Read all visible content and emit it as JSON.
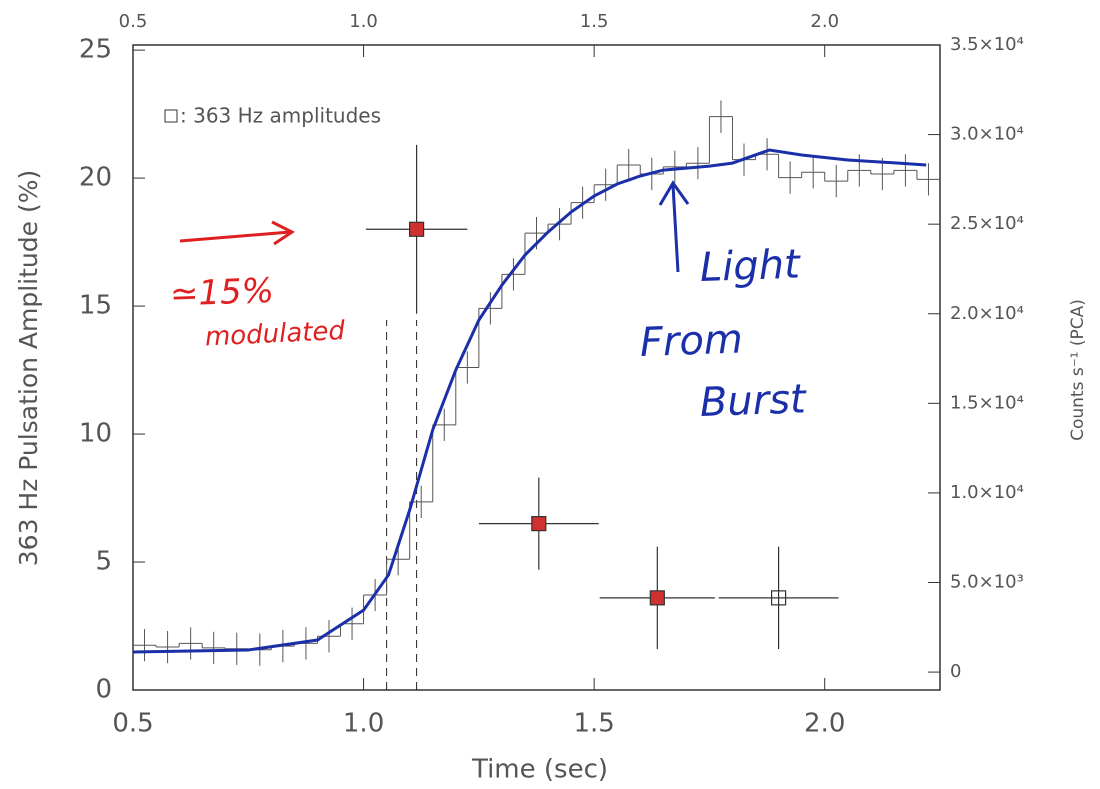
{
  "chart_data": {
    "type": "scatter",
    "xlabel": "Time (sec)",
    "ylabel": "363 Hz Pulsation Amplitude (%)",
    "y2label": "Counts s⁻¹ (PCA)",
    "xlim": [
      0.5,
      2.25
    ],
    "xticks": [
      0.5,
      {
        "value": 1,
        "label": "1.0"
      },
      1.5,
      {
        "value": 2,
        "label": "2.0"
      }
    ],
    "ylim": [
      0,
      25.2
    ],
    "yticks": [
      0,
      5,
      10,
      15,
      20,
      25
    ],
    "y2lim": [
      -1000,
      35000
    ],
    "y2ticks": [
      0,
      {
        "value": 5000,
        "label": "5.0×10³"
      },
      {
        "value": 10000,
        "label": "1.0×10⁴"
      },
      {
        "value": 15000,
        "label": "1.5×10⁴"
      },
      {
        "value": 20000,
        "label": "2.0×10⁴"
      },
      {
        "value": 25000,
        "label": "2.5×10⁴"
      },
      {
        "value": 30000,
        "label": "3.0×10⁴"
      },
      {
        "value": 35000,
        "label": "3.5×10⁴"
      }
    ],
    "series": [
      {
        "name": ": 363 Hz amplitudes",
        "kind": "errorbar",
        "color": "#333333",
        "point_fills": [
          "#d03030",
          "#d03030",
          "#d03030",
          "none"
        ],
        "x": [
          1.115,
          1.38,
          1.637,
          1.9
        ],
        "values": [
          18,
          6.5,
          3.6,
          3.6
        ],
        "xerr": [
          0.11,
          0.13,
          0.125,
          0.13
        ],
        "yerr": [
          3.3,
          1.8,
          2,
          2
        ]
      },
      {
        "kind": "histogram",
        "axis": "y2",
        "color": "#555555",
        "bins": [
          0.5,
          0.55,
          0.6,
          0.65,
          0.7,
          0.75,
          0.8,
          0.85,
          0.9,
          0.95,
          1.0,
          1.05,
          1.1,
          1.15,
          1.2,
          1.25,
          1.3,
          1.35,
          1.4,
          1.45,
          1.5,
          1.55,
          1.6,
          1.65,
          1.7,
          1.75,
          1.8,
          1.85,
          1.9,
          1.95,
          2.0,
          2.05,
          2.1,
          2.15,
          2.2,
          2.25
        ],
        "values": [
          1500,
          1400,
          1600,
          1350,
          1300,
          1250,
          1450,
          1600,
          2000,
          2700,
          4300,
          6300,
          9500,
          13800,
          17000,
          20300,
          22200,
          24500,
          25000,
          26200,
          27200,
          28300,
          27800,
          28200,
          28400,
          31000,
          28600,
          28900,
          27600,
          27900,
          27400,
          28000,
          27800,
          28000,
          27500
        ],
        "errors": [
          900,
          900,
          900,
          900,
          900,
          900,
          900,
          900,
          900,
          900,
          900,
          900,
          900,
          900,
          900,
          900,
          900,
          900,
          900,
          900,
          900,
          900,
          900,
          900,
          900,
          900,
          900,
          900,
          900,
          900,
          900,
          900,
          900,
          900,
          900
        ]
      },
      {
        "kind": "line",
        "axis": "y2",
        "color": "#1a2fa8",
        "x": [
          0.5,
          0.75,
          0.9,
          1.0,
          1.054,
          1.1,
          1.15,
          1.2,
          1.25,
          1.3,
          1.35,
          1.4,
          1.45,
          1.5,
          1.55,
          1.6,
          1.65,
          1.7,
          1.75,
          1.8,
          1.88,
          1.95,
          2.05,
          2.16,
          2.22
        ],
        "values": [
          1120,
          1230,
          1790,
          3460,
          5420,
          9050,
          13510,
          16860,
          19650,
          21600,
          23280,
          24560,
          25680,
          26570,
          27240,
          27690,
          28020,
          28130,
          28240,
          28410,
          29140,
          28860,
          28580,
          28410,
          28300
        ]
      }
    ],
    "dashed_lines": [
      1.05,
      1.115
    ],
    "annotations": [
      {
        "text": "≃15%",
        "color": "#e02020"
      },
      {
        "text": "modulated",
        "color": "#e02020"
      },
      {
        "text": "Light",
        "color": "#1a2fa8"
      },
      {
        "text": "From",
        "color": "#1a2fa8"
      },
      {
        "text": "Burst",
        "color": "#1a2fa8"
      }
    ]
  }
}
